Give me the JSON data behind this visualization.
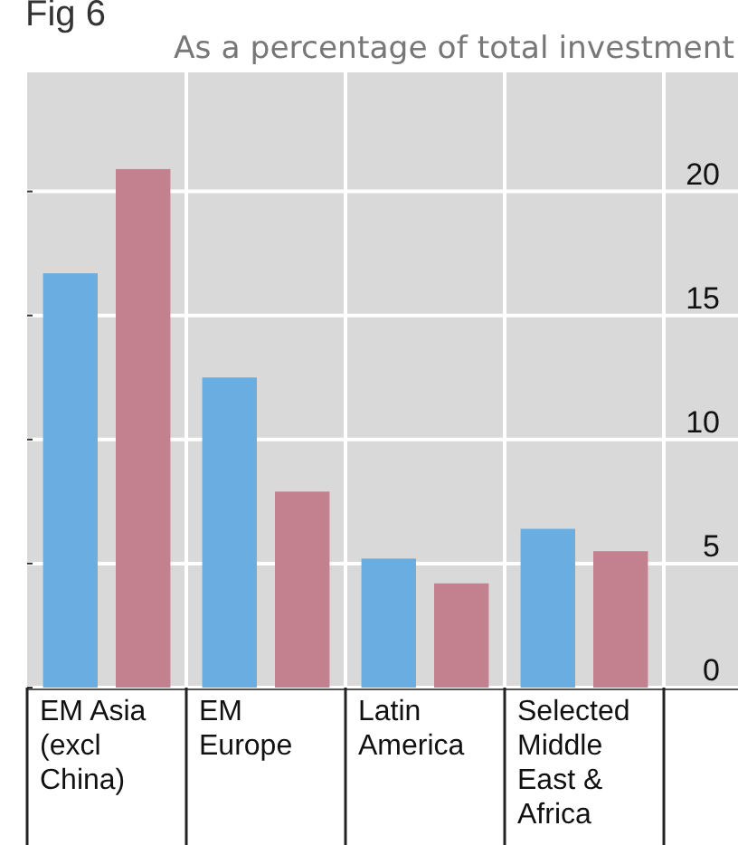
{
  "chart_data": {
    "type": "bar",
    "title": "Fig 6",
    "subtitle": "As a percentage of total investment",
    "categories": [
      "EM Asia (excl China)",
      "EM Europe",
      "Latin America",
      "Selected Middle East & Africa"
    ],
    "series": [
      {
        "color": "#6aade0",
        "values": [
          16.7,
          12.5,
          5.2,
          6.4
        ]
      },
      {
        "color": "#c3808f",
        "values": [
          20.9,
          7.9,
          4.2,
          5.5
        ]
      }
    ],
    "ylim": [
      0,
      24.8
    ],
    "yticks": [
      0,
      5,
      10,
      15,
      20
    ],
    "grid": true
  }
}
